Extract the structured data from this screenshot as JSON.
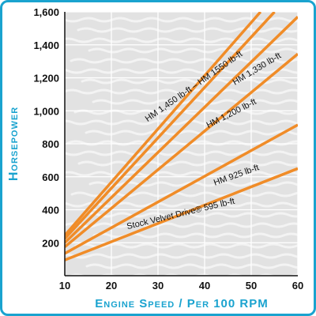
{
  "chart_data": {
    "type": "line",
    "title": "",
    "xlabel": "Engine Speed / Per 100 RPM",
    "ylabel": "Horsepower",
    "xlim": [
      10,
      60
    ],
    "ylim": [
      0,
      1600
    ],
    "xticks": [
      "10",
      "20",
      "30",
      "40",
      "50",
      "60"
    ],
    "yticks": [
      "200",
      "400",
      "600",
      "800",
      "1,000",
      "1,200",
      "1,400",
      "1,600"
    ],
    "grid": true,
    "series": [
      {
        "name": "Stock Velvet Drive® 595 lb-ft",
        "x": [
          10,
          60
        ],
        "y": [
          95,
          650
        ]
      },
      {
        "name": "HM 925 lb-ft",
        "x": [
          10,
          60
        ],
        "y": [
          135,
          915
        ]
      },
      {
        "name": "HM 1,200 lb-ft",
        "x": [
          10,
          60
        ],
        "y": [
          175,
          1345
        ]
      },
      {
        "name": "HM 1,330 lb-ft",
        "x": [
          10,
          60
        ],
        "y": [
          200,
          1570
        ]
      },
      {
        "name": "HM 1,450 lb-ft",
        "x": [
          10,
          55
        ],
        "y": [
          225,
          1600
        ]
      },
      {
        "name": "HM 1550 lb-ft",
        "x": [
          10,
          52
        ],
        "y": [
          245,
          1600
        ]
      }
    ],
    "series_labels": [
      {
        "text": "Stock Velvet Drive® 595 lb-ft",
        "x": 35,
        "y": 360
      },
      {
        "text": "HM 925 lb-ft",
        "x": 47,
        "y": 595
      },
      {
        "text": "HM 1,200 lb-ft",
        "x": 46,
        "y": 970
      },
      {
        "text": "HM 1,330 lb-ft",
        "x": 51.5,
        "y": 1240
      },
      {
        "text": "HM 1,450 lb-ft – HM 1550 lb-ft",
        "x": 38,
        "y": 1135
      }
    ],
    "colors": {
      "line": "#f08c28",
      "axis_title": "#1aa3cf",
      "frame": "#1aa3cf",
      "plot_background": "#e2e2e2",
      "grid": "#ffffff"
    }
  }
}
